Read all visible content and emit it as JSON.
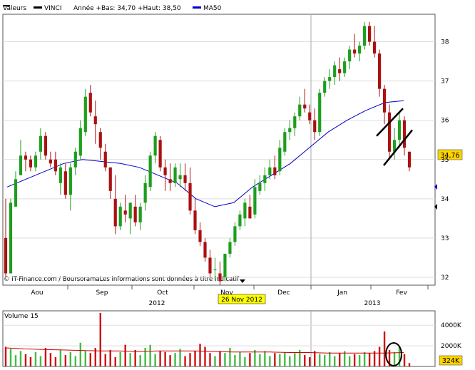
{
  "header": {
    "label_valeurs": "Valeurs",
    "series_name": "VINCI",
    "series_detail": "Année +Bas: 34,70 +Haut: 38,50",
    "ma_label": "MA50",
    "price_color": "#000000",
    "ma_color": "#0000cc"
  },
  "footer": {
    "credit": "© IT-Finance.com / BoursoramaLes informations sont données à titre indicatif",
    "highlight_date": "26 Nov 2012"
  },
  "volume_panel": {
    "title": "Volume 15",
    "last_value_badge": "324K"
  },
  "chart_data": [
    {
      "type": "candlestick",
      "name": "VINCI",
      "x_tick_labels": [
        "Aou",
        "Sep",
        "Oct",
        "Nov",
        "Dec",
        "Jan",
        "Fev"
      ],
      "year_labels": [
        "2012",
        "2013"
      ],
      "y_tick_labels": [
        "32",
        "33",
        "34",
        "35",
        "36",
        "37",
        "38"
      ],
      "ylim": [
        31.8,
        38.7
      ],
      "last_price_badge": "34,76",
      "up_color": "#1e9e1e",
      "down_color": "#aa1111",
      "ma_name": "MA50",
      "candles": [
        [
          33.0,
          34.0,
          32.0,
          32.1
        ],
        [
          32.1,
          34.0,
          32.1,
          33.9
        ],
        [
          33.8,
          34.7,
          33.8,
          34.5
        ],
        [
          34.6,
          35.5,
          34.6,
          35.1
        ],
        [
          35.1,
          35.2,
          34.7,
          35.0
        ],
        [
          35.0,
          35.1,
          34.7,
          34.8
        ],
        [
          34.8,
          35.2,
          34.7,
          35.1
        ],
        [
          35.2,
          35.8,
          35.0,
          35.6
        ],
        [
          35.6,
          35.7,
          35.0,
          35.1
        ],
        [
          35.0,
          35.2,
          34.8,
          34.9
        ],
        [
          35.0,
          35.2,
          34.6,
          34.7
        ],
        [
          34.4,
          34.9,
          34.1,
          34.8
        ],
        [
          34.7,
          34.9,
          34.0,
          34.1
        ],
        [
          34.1,
          34.9,
          33.7,
          34.8
        ],
        [
          34.8,
          35.3,
          34.6,
          35.2
        ],
        [
          35.1,
          36.0,
          35.0,
          35.8
        ],
        [
          35.7,
          36.8,
          35.6,
          36.6
        ],
        [
          36.7,
          36.9,
          36.1,
          36.2
        ],
        [
          36.1,
          36.5,
          35.4,
          35.9
        ],
        [
          35.7,
          35.8,
          35.0,
          35.3
        ],
        [
          35.2,
          35.4,
          34.7,
          34.8
        ],
        [
          34.8,
          34.8,
          34.0,
          34.2
        ],
        [
          34.0,
          34.6,
          33.1,
          33.3
        ],
        [
          33.3,
          33.9,
          33.2,
          33.8
        ],
        [
          33.7,
          34.1,
          33.4,
          33.6
        ],
        [
          33.5,
          33.9,
          33.1,
          33.9
        ],
        [
          33.8,
          34.1,
          33.3,
          33.4
        ],
        [
          33.4,
          33.9,
          33.2,
          33.8
        ],
        [
          33.9,
          34.6,
          33.7,
          34.4
        ],
        [
          34.3,
          35.2,
          34.2,
          35.1
        ],
        [
          35.1,
          35.7,
          34.9,
          35.6
        ],
        [
          35.5,
          35.6,
          34.7,
          34.8
        ],
        [
          34.8,
          35.0,
          34.2,
          34.6
        ],
        [
          34.5,
          34.9,
          34.2,
          34.4
        ],
        [
          34.4,
          34.9,
          34.3,
          34.8
        ],
        [
          34.5,
          34.9,
          34.3,
          34.6
        ],
        [
          34.6,
          34.9,
          34.2,
          34.4
        ],
        [
          34.4,
          34.8,
          33.6,
          33.7
        ],
        [
          33.7,
          34.0,
          33.1,
          33.2
        ],
        [
          33.2,
          33.4,
          32.8,
          32.9
        ],
        [
          32.9,
          33.0,
          32.4,
          32.5
        ],
        [
          32.5,
          32.7,
          32.0,
          32.1
        ],
        [
          32.2,
          32.5,
          31.9,
          32.2
        ],
        [
          32.1,
          32.4,
          31.8,
          31.9
        ],
        [
          32.0,
          32.6,
          31.9,
          32.6
        ],
        [
          32.6,
          33.0,
          32.5,
          32.9
        ],
        [
          32.9,
          33.4,
          32.8,
          33.3
        ],
        [
          33.3,
          33.7,
          33.2,
          33.6
        ],
        [
          33.5,
          34.0,
          33.3,
          33.9
        ],
        [
          33.8,
          34.1,
          33.5,
          33.5
        ],
        [
          33.6,
          34.5,
          33.5,
          34.3
        ],
        [
          34.2,
          34.6,
          34.1,
          34.4
        ],
        [
          34.4,
          34.8,
          34.2,
          34.6
        ],
        [
          34.6,
          35.0,
          34.5,
          34.8
        ],
        [
          34.8,
          35.1,
          34.5,
          34.6
        ],
        [
          34.7,
          35.5,
          34.6,
          35.3
        ],
        [
          35.2,
          35.8,
          35.1,
          35.7
        ],
        [
          35.7,
          36.0,
          35.5,
          35.8
        ],
        [
          35.8,
          36.2,
          35.6,
          36.1
        ],
        [
          36.1,
          36.6,
          36.0,
          36.4
        ],
        [
          36.4,
          36.8,
          36.2,
          36.3
        ],
        [
          36.2,
          36.4,
          35.9,
          36.0
        ],
        [
          36.0,
          36.3,
          35.5,
          35.7
        ],
        [
          35.7,
          36.8,
          35.6,
          36.7
        ],
        [
          36.7,
          37.1,
          36.6,
          37.0
        ],
        [
          37.0,
          37.3,
          36.8,
          37.1
        ],
        [
          37.1,
          37.5,
          36.9,
          37.4
        ],
        [
          37.3,
          37.6,
          37.0,
          37.2
        ],
        [
          37.2,
          37.6,
          37.1,
          37.5
        ],
        [
          37.5,
          37.9,
          37.3,
          37.8
        ],
        [
          37.8,
          38.2,
          37.6,
          37.7
        ],
        [
          37.7,
          38.0,
          37.5,
          37.9
        ],
        [
          37.9,
          38.5,
          37.8,
          38.4
        ],
        [
          38.4,
          38.5,
          37.9,
          38.0
        ],
        [
          38.0,
          38.4,
          37.6,
          37.7
        ],
        [
          37.7,
          37.8,
          36.6,
          36.8
        ],
        [
          36.8,
          36.9,
          35.9,
          36.2
        ],
        [
          36.2,
          36.4,
          35.0,
          35.2
        ],
        [
          35.2,
          35.8,
          35.0,
          35.5
        ],
        [
          35.5,
          36.2,
          35.3,
          36.0
        ],
        [
          36.0,
          36.1,
          35.1,
          35.3
        ],
        [
          35.2,
          35.2,
          34.7,
          34.8
        ]
      ],
      "ma50": [
        34.3,
        34.5,
        34.7,
        34.9,
        35.0,
        34.95,
        34.9,
        34.8,
        34.6,
        34.4,
        34.0,
        33.8,
        33.9,
        34.3,
        34.6,
        34.9,
        35.3,
        35.7,
        36.0,
        36.25,
        36.45,
        36.5
      ]
    },
    {
      "type": "bar",
      "name": "Volume 15",
      "y_tick_labels": [
        "2000K",
        "4000K"
      ],
      "ylim": [
        0,
        5400
      ],
      "last_value_badge": "324K",
      "values": [
        1900,
        1700,
        1100,
        1500,
        1200,
        900,
        1400,
        1000,
        1800,
        1300,
        900,
        1600,
        1100,
        1400,
        1000,
        2300,
        1500,
        1300,
        1800,
        5200,
        1200,
        1600,
        900,
        1400,
        2100,
        1300,
        1600,
        1100,
        1800,
        2100,
        1200,
        1500,
        1400,
        1100,
        1300,
        1700,
        1000,
        1300,
        1500,
        2200,
        1900,
        1300,
        1000,
        1500,
        1300,
        1800,
        1100,
        1400,
        900,
        1300,
        1600,
        1200,
        1500,
        1000,
        1300,
        1200,
        1400,
        1000,
        1300,
        1600,
        1100,
        900,
        1500,
        1200,
        1100,
        1400,
        1000,
        1300,
        1500,
        1000,
        1200,
        1100,
        1400,
        1300,
        1500,
        1900,
        3400,
        1600,
        1400,
        1900,
        1200,
        324
      ],
      "average_line": [
        1800,
        1700,
        1650,
        1600,
        1550,
        1500,
        1500,
        1450,
        1500,
        1500,
        1500,
        1450,
        1400,
        1400,
        1400,
        1350,
        1350,
        1300,
        1300,
        1300,
        1300,
        1350
      ]
    }
  ]
}
